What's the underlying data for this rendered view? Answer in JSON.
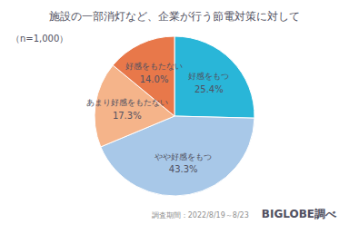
{
  "chart_data": {
    "type": "pie",
    "title": "施設の一部消灯など、企業が行う節電対策に対して",
    "categories": [
      "好感をもつ",
      "やや好感をもつ",
      "あまり好感をもたない",
      "好感をもたない"
    ],
    "values": [
      25.4,
      43.3,
      17.3,
      14.0
    ],
    "value_labels": [
      "25.4%",
      "43.3%",
      "17.3%",
      "14.0%"
    ],
    "colors": [
      "#29B6D8",
      "#A8C8E8",
      "#F5B48A",
      "#E8784A"
    ],
    "data_labels": true,
    "annotations": [
      "（n=1,000）",
      "調査期間：2022/8/19～8/23",
      "BIGLOBE調べ"
    ]
  }
}
